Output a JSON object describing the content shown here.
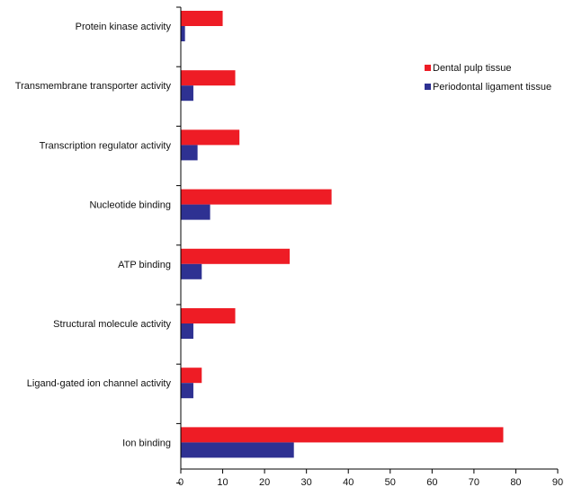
{
  "chart_data": {
    "type": "bar",
    "orientation": "horizontal",
    "categories": [
      "Protein kinase activity",
      "Transmembrane transporter activity",
      "Transcription regulator activity",
      "Nucleotide binding",
      "ATP binding",
      "Structural molecule activity",
      "Ligand-gated ion channel activity",
      "Ion binding"
    ],
    "series": [
      {
        "name": "Dental pulp tissue",
        "color": "#ee1c25",
        "values": [
          10,
          13,
          14,
          36,
          26,
          13,
          5,
          77
        ]
      },
      {
        "name": "Periodontal ligament tissue",
        "color": "#2e3192",
        "values": [
          1,
          3,
          4,
          7,
          5,
          3,
          3,
          27
        ]
      }
    ],
    "xlim": [
      0,
      90
    ],
    "xticks": [
      "0",
      "10",
      "20",
      "30",
      "40",
      "50",
      "60",
      "70",
      "80",
      "90"
    ],
    "grid": false,
    "legend_position": "top-right"
  }
}
